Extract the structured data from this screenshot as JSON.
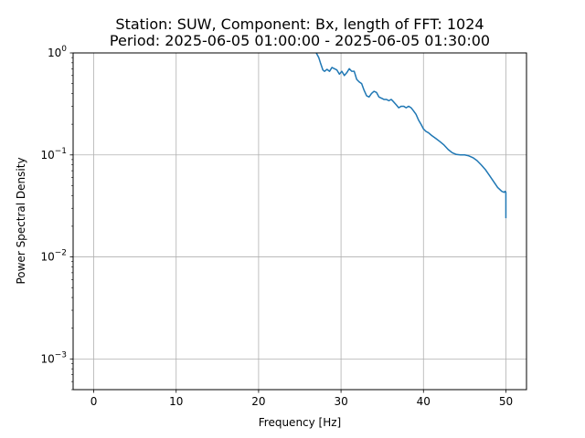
{
  "chart_data": {
    "type": "line",
    "title": "Station: SUW, Component: Bx, length of FFT: 1024",
    "subtitle": "Period: 2025-06-05 01:00:00 - 2025-06-05 01:30:00",
    "xlabel": "Frequency [Hz]",
    "ylabel": "Power Spectral Density",
    "xlim": [
      -2.5,
      52.5
    ],
    "ylim": [
      0.0005,
      1
    ],
    "yscale": "log",
    "grid": true,
    "x_ticks": [
      0,
      10,
      20,
      30,
      40,
      50
    ],
    "x_tick_labels": [
      "0",
      "10",
      "20",
      "30",
      "40",
      "50"
    ],
    "y_ticks": [
      0.001,
      0.01,
      0.1,
      1
    ],
    "y_tick_labels": [
      {
        "base": "10",
        "exp": "−3"
      },
      {
        "base": "10",
        "exp": "−2"
      },
      {
        "base": "10",
        "exp": "−1"
      },
      {
        "base": "10",
        "exp": "0"
      }
    ],
    "series_color": "#1f77b4",
    "series": [
      {
        "x": [
          26.5,
          27.0,
          27.3,
          27.5,
          27.8,
          28.0,
          28.3,
          28.6,
          28.9,
          29.2,
          29.5,
          29.8,
          30.1,
          30.4,
          30.7,
          31.0,
          31.3,
          31.6,
          31.9,
          32.2,
          32.5,
          32.8,
          33.1,
          33.4,
          33.7,
          34.0,
          34.3,
          34.6,
          34.9,
          35.2,
          35.5,
          35.8,
          36.1,
          36.4,
          36.7,
          37.0,
          37.3,
          37.6,
          37.9,
          38.2,
          38.5,
          38.8,
          39.1,
          39.4,
          39.7,
          40.0,
          40.3,
          40.6,
          41.0,
          41.5,
          42.0,
          42.5,
          43.0,
          43.5,
          44.0,
          44.5,
          45.0,
          45.5,
          46.0,
          46.5,
          47.0,
          47.5,
          48.0,
          48.5,
          49.0,
          49.5,
          49.8,
          49.9,
          50.0,
          50.0
        ],
        "y": [
          1.1,
          1.0,
          0.9,
          0.8,
          0.68,
          0.66,
          0.69,
          0.66,
          0.72,
          0.7,
          0.68,
          0.62,
          0.66,
          0.6,
          0.64,
          0.7,
          0.66,
          0.66,
          0.55,
          0.52,
          0.5,
          0.43,
          0.38,
          0.37,
          0.4,
          0.42,
          0.41,
          0.37,
          0.36,
          0.35,
          0.35,
          0.34,
          0.35,
          0.33,
          0.31,
          0.29,
          0.3,
          0.3,
          0.29,
          0.3,
          0.29,
          0.27,
          0.25,
          0.22,
          0.2,
          0.18,
          0.17,
          0.165,
          0.155,
          0.145,
          0.135,
          0.125,
          0.113,
          0.105,
          0.101,
          0.1,
          0.1,
          0.098,
          0.094,
          0.088,
          0.08,
          0.072,
          0.063,
          0.055,
          0.048,
          0.044,
          0.043,
          0.044,
          0.043,
          0.024
        ]
      }
    ]
  }
}
